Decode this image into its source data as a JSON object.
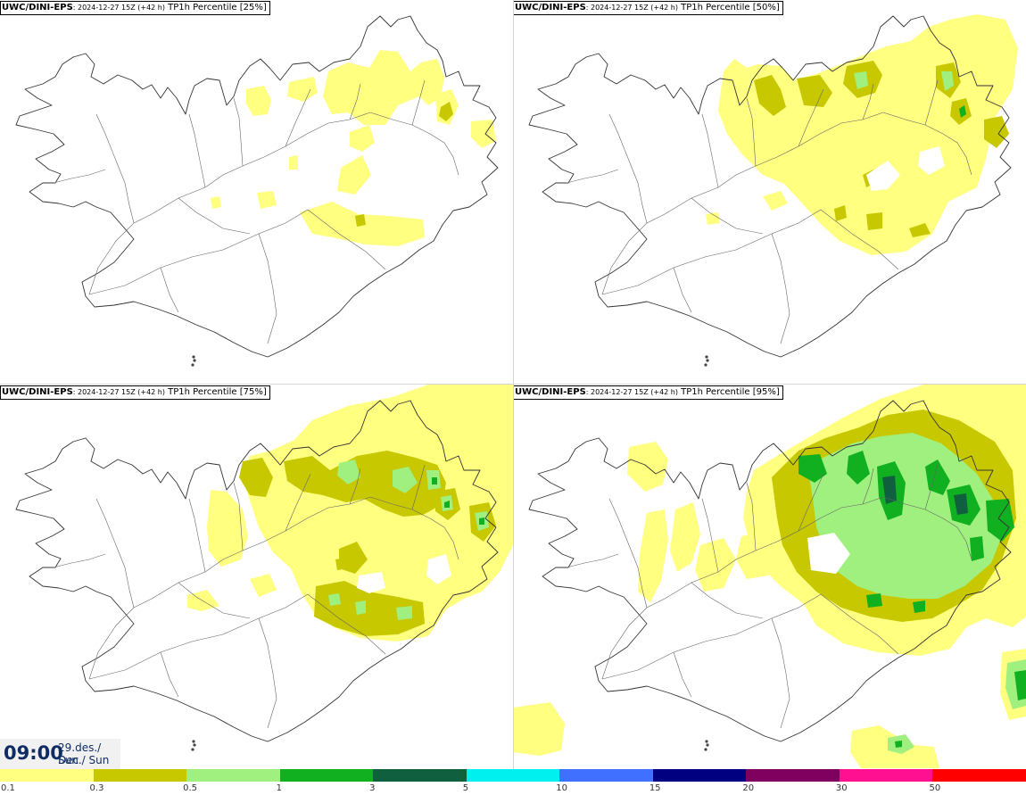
{
  "panels": [
    {
      "model": "UWC/DINI-EPS",
      "run": ": 2024-12-27 15Z (+42 h)",
      "field": " TP1h Percentile [25%]",
      "level": 0.25
    },
    {
      "model": "UWC/DINI-EPS",
      "run": ": 2024-12-27 15Z (+42 h)",
      "field": " TP1h Percentile [50%]",
      "level": 0.5
    },
    {
      "model": "UWC/DINI-EPS",
      "run": ": 2024-12-27 15Z (+42 h)",
      "field": " TP1h Percentile [75%]",
      "level": 0.75
    },
    {
      "model": "UWC/DINI-EPS",
      "run": ": 2024-12-27 15Z (+42 h)",
      "field": " TP1h Percentile [95%]",
      "level": 0.95
    }
  ],
  "valid_time": {
    "time": "09:00",
    "date": "29.des./ Dec",
    "day": "Sun./ Sun"
  },
  "legend": {
    "colors": [
      "#ffff80",
      "#c8c800",
      "#a0f080",
      "#10b020",
      "#106040",
      "#00f0f0",
      "#4070ff",
      "#000080",
      "#800060",
      "#ff1090",
      "#ff0000"
    ],
    "ticks": [
      "0.1",
      "0.3",
      "0.5",
      "1",
      "3",
      "5",
      "10",
      "15",
      "20",
      "30",
      "50"
    ]
  }
}
